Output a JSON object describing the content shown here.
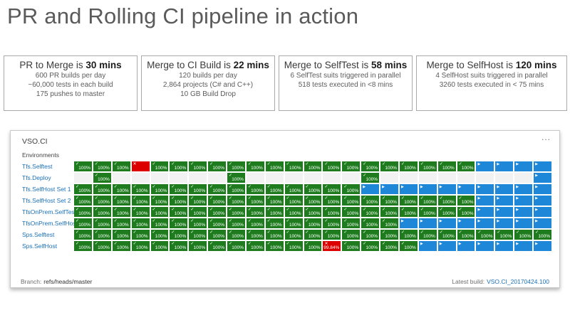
{
  "title": "PR and Rolling CI pipeline in action",
  "stat_boxes": [
    {
      "heading": "PR to Merge is",
      "time": "30 mins",
      "lines": [
        "600 PR builds per day",
        "~60,000 tests in each build",
        "175 pushes to master"
      ]
    },
    {
      "heading": "Merge to CI Build is",
      "time": "22 mins",
      "lines": [
        "120 builds per day",
        "2,864 projects (C# and C++)",
        "10 GB Build Drop"
      ]
    },
    {
      "heading": "Merge to SelfTest is",
      "time": "58 mins",
      "lines": [
        "6 SelfTest suits triggered in parallel",
        "518 tests executed in <8 mins"
      ]
    },
    {
      "heading": "Merge to SelfHost is",
      "time": "120 mins",
      "lines": [
        "4 SelfHost suits triggered in parallel",
        "3260 tests executed in < 75 mins"
      ]
    }
  ],
  "dashboard": {
    "title": "VSO.CI",
    "menu_icon": "...",
    "environments_label": "Environments",
    "columns": 25,
    "colors": {
      "success": "#1e7c1e",
      "running": "#1f87d7",
      "failed": "#dd0000",
      "empty": "#f2f2f2",
      "label_link": "#1a70b8"
    },
    "cell_legend": {
      "g": {
        "state": "success",
        "icon": "✓",
        "value": "100%"
      },
      "r": {
        "state": "failed",
        "icon": "✕",
        "value": ""
      },
      "R": {
        "state": "failed",
        "icon": "✕",
        "value": "99.84%"
      },
      "b": {
        "state": "running",
        "icon": "▶",
        "value": ""
      },
      "e": {
        "state": "empty",
        "icon": "",
        "value": ""
      }
    },
    "rows": [
      {
        "label": "Tfs.Selftest",
        "cells": [
          "g",
          "g",
          "g",
          "r",
          "g",
          "g",
          "g",
          "g",
          "g",
          "g",
          "g",
          "g",
          "g",
          "g",
          "g",
          "g",
          "g",
          "g",
          "g",
          "g",
          "g",
          "b",
          "b",
          "b",
          "b"
        ]
      },
      {
        "label": "Tfs.Deploy",
        "cells": [
          "e",
          "g",
          "e",
          "e",
          "e",
          "e",
          "e",
          "e",
          "g",
          "e",
          "e",
          "e",
          "e",
          "e",
          "e",
          "g",
          "e",
          "e",
          "e",
          "e",
          "e",
          "e",
          "e",
          "e",
          "b"
        ]
      },
      {
        "label": "Tfs.SelfHost Set 1",
        "cells": [
          "g",
          "g",
          "g",
          "g",
          "g",
          "g",
          "g",
          "g",
          "g",
          "g",
          "g",
          "g",
          "g",
          "g",
          "g",
          "b",
          "b",
          "b",
          "b",
          "b",
          "b",
          "b",
          "b",
          "b",
          "b"
        ]
      },
      {
        "label": "Tfs.SelfHost Set 2",
        "cells": [
          "g",
          "g",
          "g",
          "g",
          "g",
          "g",
          "g",
          "g",
          "g",
          "g",
          "g",
          "g",
          "g",
          "g",
          "g",
          "g",
          "g",
          "g",
          "g",
          "g",
          "g",
          "b",
          "b",
          "b",
          "b"
        ]
      },
      {
        "label": "TfsOnPrem.SelfTest",
        "cells": [
          "g",
          "g",
          "g",
          "g",
          "g",
          "g",
          "g",
          "g",
          "g",
          "g",
          "g",
          "g",
          "g",
          "g",
          "g",
          "g",
          "g",
          "g",
          "g",
          "g",
          "g",
          "b",
          "b",
          "b",
          "b"
        ]
      },
      {
        "label": "TfsOnPrem.SelfHost",
        "cells": [
          "g",
          "g",
          "g",
          "g",
          "g",
          "g",
          "g",
          "g",
          "g",
          "g",
          "g",
          "g",
          "g",
          "g",
          "g",
          "g",
          "g",
          "b",
          "b",
          "b",
          "b",
          "b",
          "b",
          "b",
          "b"
        ]
      },
      {
        "label": "Sps.Selftest",
        "cells": [
          "g",
          "g",
          "g",
          "g",
          "g",
          "g",
          "g",
          "g",
          "g",
          "g",
          "g",
          "g",
          "g",
          "g",
          "g",
          "g",
          "g",
          "g",
          "g",
          "g",
          "g",
          "g",
          "g",
          "g",
          "g"
        ]
      },
      {
        "label": "Sps.SelfHost",
        "cells": [
          "g",
          "g",
          "g",
          "g",
          "g",
          "g",
          "g",
          "g",
          "g",
          "g",
          "g",
          "g",
          "g",
          "R",
          "g",
          "g",
          "g",
          "g",
          "b",
          "b",
          "b",
          "b",
          "b",
          "b",
          "b"
        ]
      }
    ],
    "footer": {
      "branch_label": "Branch:",
      "branch_value": "refs/heads/master",
      "latest_build_label": "Latest build:",
      "latest_build_value": "VSO.CI_20170424.100"
    }
  }
}
